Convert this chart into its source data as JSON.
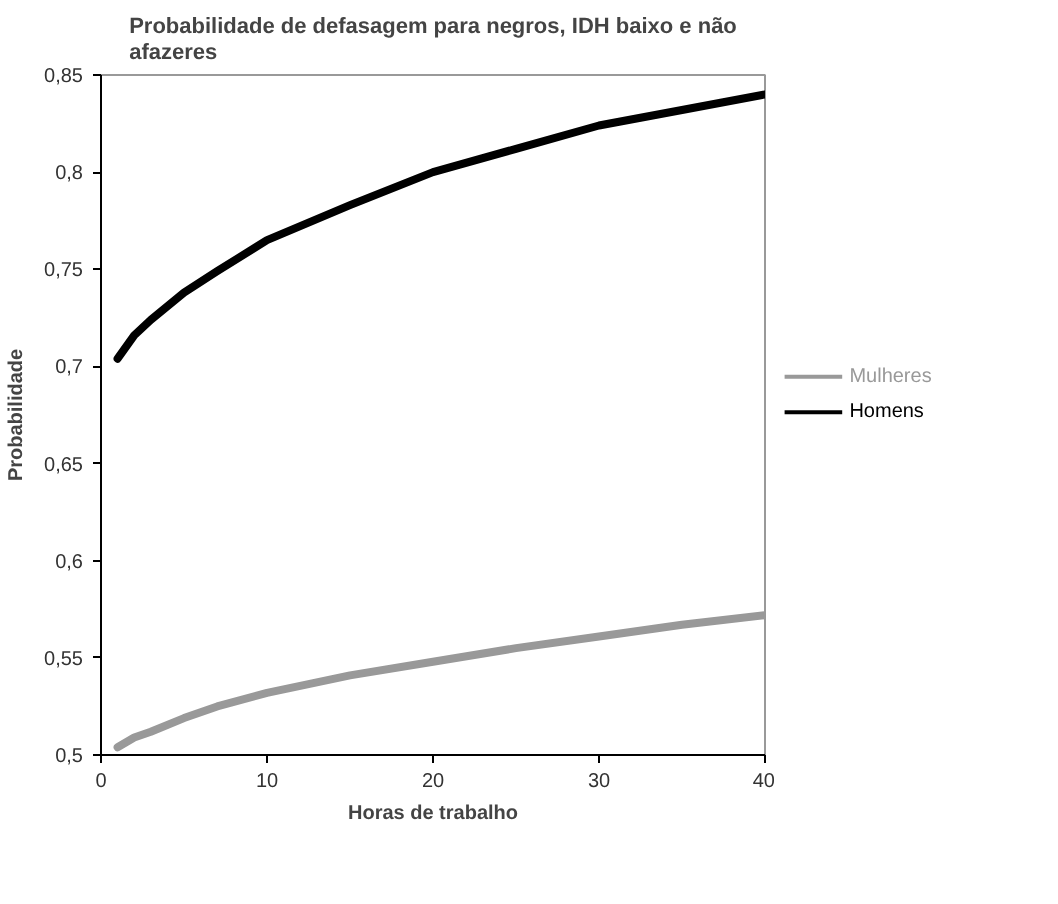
{
  "chart_data": {
    "type": "line",
    "title": "Probabilidade de defasagem para negros, IDH baixo e não afazeres",
    "xlabel": "Horas de trabalho",
    "ylabel": "Probabilidade",
    "x": [
      1,
      2,
      3,
      5,
      7,
      10,
      15,
      20,
      25,
      30,
      35,
      40
    ],
    "series": [
      {
        "name": "Mulheres",
        "color": "#999999",
        "values": [
          0.504,
          0.509,
          0.512,
          0.519,
          0.525,
          0.532,
          0.541,
          0.548,
          0.555,
          0.561,
          0.567,
          0.572
        ]
      },
      {
        "name": "Homens",
        "color": "#000000",
        "values": [
          0.704,
          0.716,
          0.724,
          0.738,
          0.749,
          0.765,
          0.783,
          0.8,
          0.812,
          0.824,
          0.832,
          0.84
        ]
      }
    ],
    "xlim": [
      0,
      40
    ],
    "ylim": [
      0.5,
      0.85
    ],
    "xticks": [
      0,
      10,
      20,
      30,
      40
    ],
    "yticks": [
      {
        "value": 0.5,
        "label": "0,5"
      },
      {
        "value": 0.55,
        "label": "0,55"
      },
      {
        "value": 0.6,
        "label": "0,6"
      },
      {
        "value": 0.65,
        "label": "0,65"
      },
      {
        "value": 0.7,
        "label": "0,7"
      },
      {
        "value": 0.75,
        "label": "0,75"
      },
      {
        "value": 0.8,
        "label": "0,8"
      },
      {
        "value": 0.85,
        "label": "0,85"
      }
    ],
    "grid": false,
    "legend": "right",
    "marker": "none",
    "line_style": "solid"
  }
}
